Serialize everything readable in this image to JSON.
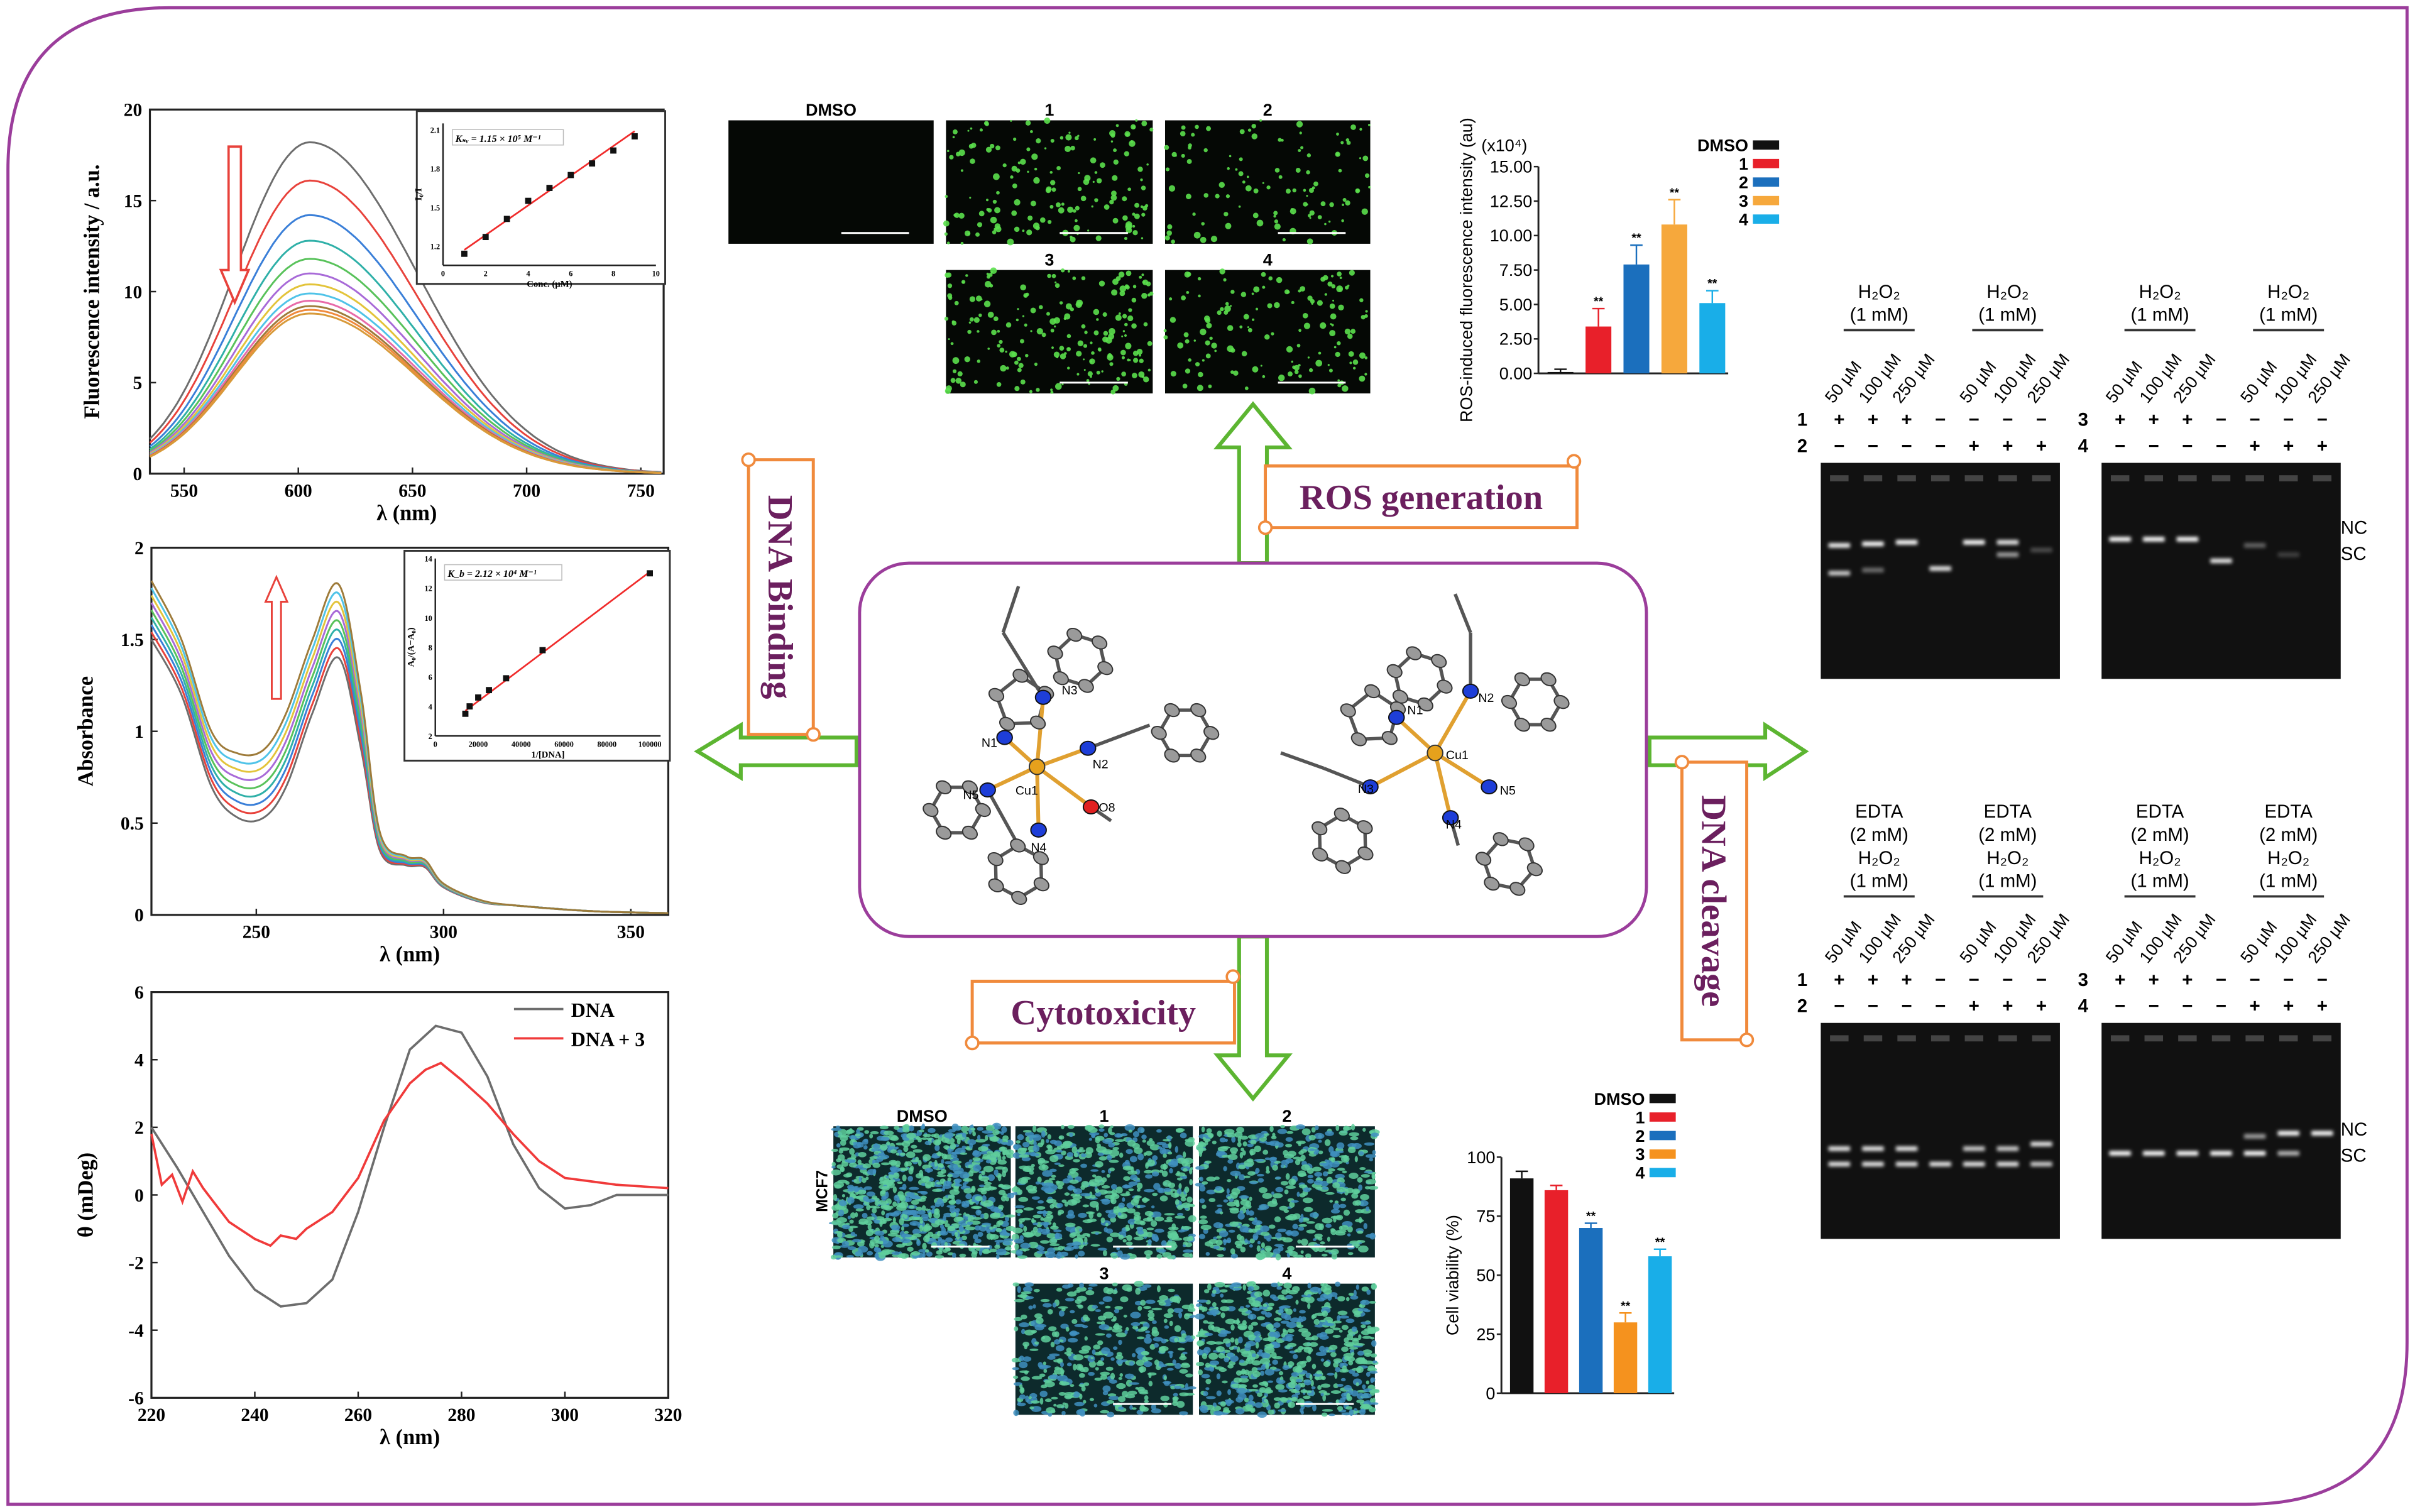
{
  "labels": {
    "dna_binding": "DNA Binding",
    "ros_generation": "ROS generation",
    "cytotoxicity": "Cytotoxicity",
    "dna_cleavage": "DNA cleavage"
  },
  "colors": {
    "frame": "#9b3d9b",
    "arrow": "#5cb531",
    "scroll_border": "#f08a3c",
    "scroll_text": "#6b1f5e"
  },
  "ros_images": {
    "labels": [
      "DMSO",
      "1",
      "2",
      "3",
      "4"
    ]
  },
  "cyto_images": {
    "labels": [
      "DMSO",
      "1",
      "2",
      "3",
      "4"
    ],
    "cell_line": "MCF7"
  },
  "structure": {
    "left_atoms": [
      "N3",
      "N1",
      "N2",
      "N5",
      "Cu1",
      "O8",
      "N4"
    ],
    "right_atoms": [
      "N1",
      "N2",
      "Cu1",
      "N3",
      "N5",
      "N4"
    ]
  },
  "gels": {
    "top": {
      "headers": [
        [
          "H₂O₂",
          "(1 mM)"
        ],
        [
          "H₂O₂",
          "(1 mM)"
        ],
        [
          "H₂O₂",
          "(1 mM)"
        ],
        [
          "H₂O₂",
          "(1 mM)"
        ]
      ],
      "concentrations": [
        "50 µM",
        "100 µM",
        "250 µM"
      ],
      "left_rows": [
        {
          "label": "1",
          "signs": [
            "+",
            "+",
            "+",
            "−",
            "−",
            "−",
            "−"
          ]
        },
        {
          "label": "2",
          "signs": [
            "−",
            "−",
            "−",
            "−",
            "+",
            "+",
            "+"
          ]
        }
      ],
      "right_rows": [
        {
          "label": "3",
          "signs": [
            "+",
            "+",
            "+",
            "−",
            "−",
            "−",
            "−"
          ]
        },
        {
          "label": "4",
          "signs": [
            "−",
            "−",
            "−",
            "−",
            "+",
            "+",
            "+"
          ]
        }
      ],
      "band_labels": [
        "NC",
        "SC"
      ]
    },
    "bottom": {
      "headers": [
        [
          "EDTA",
          "(2 mM)",
          "H₂O₂",
          "(1 mM)"
        ],
        [
          "EDTA",
          "(2 mM)",
          "H₂O₂",
          "(1 mM)"
        ],
        [
          "EDTA",
          "(2 mM)",
          "H₂O₂",
          "(1 mM)"
        ],
        [
          "EDTA",
          "(2 mM)",
          "H₂O₂",
          "(1 mM)"
        ]
      ],
      "concentrations": [
        "50 µM",
        "100 µM",
        "250 µM"
      ],
      "left_rows": [
        {
          "label": "1",
          "signs": [
            "+",
            "+",
            "+",
            "−",
            "−",
            "−",
            "−"
          ]
        },
        {
          "label": "2",
          "signs": [
            "−",
            "−",
            "−",
            "−",
            "+",
            "+",
            "+"
          ]
        }
      ],
      "right_rows": [
        {
          "label": "3",
          "signs": [
            "+",
            "+",
            "+",
            "−",
            "−",
            "−",
            "−"
          ]
        },
        {
          "label": "4",
          "signs": [
            "−",
            "−",
            "−",
            "−",
            "+",
            "+",
            "+"
          ]
        }
      ],
      "band_labels": [
        "NC",
        "SC"
      ]
    }
  },
  "chart_data": [
    {
      "id": "fluorescence",
      "type": "line",
      "xlabel": "λ (nm)",
      "ylabel": "Fluorescence intensity / a.u.",
      "xlim": [
        535,
        760
      ],
      "ylim": [
        0,
        20
      ],
      "xticks": [
        550,
        600,
        650,
        700,
        750
      ],
      "yticks": [
        0,
        5,
        10,
        15,
        20
      ],
      "peak_wavelength": 605,
      "peak_intensities": [
        18.2,
        16.1,
        14.2,
        12.8,
        11.8,
        11.0,
        10.4,
        9.9,
        9.5,
        9.2,
        9.0,
        8.8
      ],
      "series_colors": [
        "#6d6d6d",
        "#e8423b",
        "#3a7fd8",
        "#2fb0a8",
        "#58c25a",
        "#a86ad8",
        "#e3c43a",
        "#4fc3e8",
        "#e86aa8",
        "#9e7b3a",
        "#f08a3c",
        "#d89a3a"
      ],
      "annotation": "arrow-down"
    },
    {
      "id": "fluorescence_inset",
      "type": "scatter",
      "annotation": "Kₛᵥ = 1.15 × 10⁵ M⁻¹",
      "xlabel": "Conc. (µM)",
      "ylabel": "I₀/I",
      "xlim": [
        0,
        10
      ],
      "ylim": [
        1.05,
        2.15
      ],
      "xticks": [
        0,
        2,
        4,
        6,
        8,
        10
      ],
      "yticks": [
        1.2,
        1.5,
        1.8,
        2.1
      ],
      "x": [
        1,
        2,
        3,
        4,
        5,
        6,
        7,
        8,
        9
      ],
      "y": [
        1.14,
        1.27,
        1.41,
        1.55,
        1.65,
        1.75,
        1.84,
        1.94,
        2.05
      ],
      "fit": [
        [
          1,
          1.17
        ],
        [
          9,
          2.09
        ]
      ]
    },
    {
      "id": "absorbance",
      "type": "line",
      "xlabel": "λ (nm)",
      "ylabel": "Absorbance",
      "xlim": [
        222,
        360
      ],
      "ylim": [
        0,
        2.0
      ],
      "xticks": [
        250,
        300,
        350
      ],
      "yticks": [
        0.0,
        0.5,
        1.0,
        1.5,
        2.0
      ],
      "x": [
        222,
        230,
        238,
        245,
        252,
        258,
        265,
        272,
        278,
        283,
        290,
        295,
        300,
        310,
        320,
        340,
        360
      ],
      "series_min": [
        1.5,
        1.2,
        0.7,
        0.53,
        0.53,
        0.7,
        1.1,
        1.4,
        0.9,
        0.35,
        0.27,
        0.26,
        0.15,
        0.07,
        0.05,
        0.02,
        0.01
      ],
      "series_max": [
        1.82,
        1.5,
        1.0,
        0.88,
        0.9,
        1.1,
        1.5,
        1.8,
        1.2,
        0.45,
        0.32,
        0.3,
        0.17,
        0.08,
        0.05,
        0.02,
        0.01
      ],
      "series_count": 9,
      "series_colors": [
        "#6d6d6d",
        "#e8423b",
        "#3a7fd8",
        "#2fb0a8",
        "#58c25a",
        "#a86ad8",
        "#e3c43a",
        "#4fc3e8",
        "#9e7b3a"
      ],
      "annotation": "arrow-up"
    },
    {
      "id": "absorbance_inset",
      "type": "scatter",
      "annotation": "K_b = 2.12 × 10⁴ M⁻¹",
      "xlabel": "1/[DNA]",
      "ylabel": "A₀/(A−A₀)",
      "xlim": [
        0,
        105000
      ],
      "ylim": [
        2,
        14
      ],
      "xticks": [
        0,
        20000,
        40000,
        60000,
        80000,
        100000
      ],
      "yticks": [
        2,
        4,
        6,
        8,
        10,
        12,
        14
      ],
      "x": [
        14000,
        16000,
        20000,
        25000,
        33000,
        50000,
        100000
      ],
      "y": [
        3.5,
        4.0,
        4.6,
        5.1,
        5.9,
        7.8,
        13.0
      ],
      "fit": [
        [
          14000,
          3.7
        ],
        [
          100000,
          13.1
        ]
      ]
    },
    {
      "id": "cd",
      "type": "line",
      "xlabel": "λ (nm)",
      "ylabel": "θ (mDeg)",
      "xlim": [
        220,
        320
      ],
      "ylim": [
        -6,
        6
      ],
      "xticks": [
        220,
        240,
        260,
        280,
        300,
        320
      ],
      "yticks": [
        -6,
        -4,
        -2,
        0,
        2,
        4,
        6
      ],
      "legend_position": "top-right",
      "series": [
        {
          "name": "DNA",
          "color": "#6d6d6d",
          "x": [
            220,
            225,
            230,
            235,
            240,
            245,
            250,
            255,
            260,
            265,
            270,
            275,
            280,
            285,
            290,
            295,
            300,
            305,
            310,
            320
          ],
          "y": [
            2,
            0.8,
            -0.5,
            -1.8,
            -2.8,
            -3.3,
            -3.2,
            -2.5,
            -0.5,
            2,
            4.3,
            5.0,
            4.8,
            3.5,
            1.5,
            0.2,
            -0.4,
            -0.3,
            0,
            0
          ]
        },
        {
          "name": "DNA + 3",
          "color": "#f03a3a",
          "x": [
            220,
            222,
            224,
            226,
            228,
            230,
            232,
            235,
            240,
            243,
            245,
            248,
            250,
            255,
            260,
            265,
            270,
            273,
            276,
            280,
            285,
            290,
            295,
            300,
            305,
            310,
            320
          ],
          "y": [
            1.8,
            0.3,
            0.6,
            -0.2,
            0.7,
            0.2,
            -0.2,
            -0.8,
            -1.3,
            -1.5,
            -1.2,
            -1.3,
            -1.0,
            -0.5,
            0.5,
            2.2,
            3.3,
            3.7,
            3.9,
            3.4,
            2.7,
            1.8,
            1.0,
            0.5,
            0.4,
            0.3,
            0.2
          ]
        }
      ]
    },
    {
      "id": "ros",
      "type": "bar",
      "multiplier_label": "(x10⁴)",
      "ylabel": "ROS-induced fluorescence intensity (au)",
      "ylim": [
        0,
        15
      ],
      "yticks": [
        "0.00",
        "2.50",
        "5.00",
        "7.50",
        "10.00",
        "12.50",
        "15.00"
      ],
      "categories": [
        "DMSO",
        "1",
        "2",
        "3",
        "4"
      ],
      "values": [
        0.1,
        3.4,
        7.9,
        10.8,
        5.1
      ],
      "errors": [
        0.2,
        1.3,
        1.4,
        1.8,
        0.9
      ],
      "significance": [
        "",
        "**",
        "**",
        "**",
        "**"
      ],
      "colors": [
        "#111111",
        "#e8202a",
        "#1b6fbd",
        "#f6a83c",
        "#19aee8"
      ],
      "legend_position": "top-right"
    },
    {
      "id": "viability",
      "type": "bar",
      "ylabel": "Cell viability (%)",
      "ylim": [
        0,
        100
      ],
      "yticks": [
        "0",
        "25",
        "50",
        "75",
        "100"
      ],
      "categories": [
        "DMSO",
        "1",
        "2",
        "3",
        "4"
      ],
      "values": [
        91,
        86,
        70,
        30,
        58
      ],
      "errors": [
        3,
        2,
        2,
        4,
        3
      ],
      "significance": [
        "",
        "",
        "**",
        "**",
        "**"
      ],
      "colors": [
        "#111111",
        "#e8202a",
        "#1b6fbd",
        "#f5921e",
        "#19aee8"
      ],
      "legend_position": "top-right"
    }
  ]
}
